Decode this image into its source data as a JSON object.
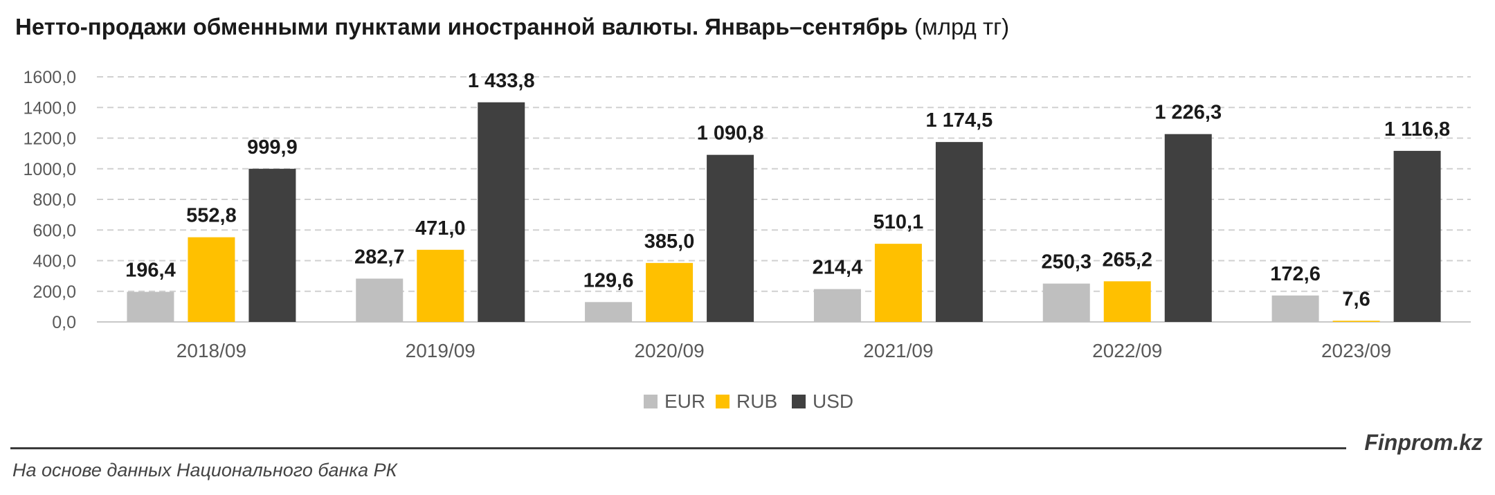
{
  "title": {
    "main": "Нетто-продажи обменными пунктами иностранной валюты. Январь–сентябрь",
    "unit": "(млрд тг)"
  },
  "chart_data": {
    "type": "bar",
    "categories": [
      "2018/09",
      "2019/09",
      "2020/09",
      "2021/09",
      "2022/09",
      "2023/09"
    ],
    "series": [
      {
        "name": "EUR",
        "values": [
          196.4,
          282.7,
          129.6,
          214.4,
          250.3,
          172.6
        ],
        "labels": [
          "196,4",
          "282,7",
          "129,6",
          "214,4",
          "250,3",
          "172,6"
        ],
        "color": "#bfbfbf"
      },
      {
        "name": "RUB",
        "values": [
          552.8,
          471.0,
          385.0,
          510.1,
          265.2,
          7.6
        ],
        "labels": [
          "552,8",
          "471,0",
          "385,0",
          "510,1",
          "265,2",
          "7,6"
        ],
        "color": "#ffc000"
      },
      {
        "name": "USD",
        "values": [
          999.9,
          1433.8,
          1090.8,
          1174.5,
          1226.3,
          1116.8
        ],
        "labels": [
          "999,9",
          "1 433,8",
          "1 090,8",
          "1 174,5",
          "1 226,3",
          "1 116,8"
        ],
        "color": "#404040"
      }
    ],
    "ylim": [
      0,
      1600
    ],
    "yticks": [
      "0,0",
      "200,0",
      "400,0",
      "600,0",
      "800,0",
      "1000,0",
      "1200,0",
      "1400,0",
      "1600,0"
    ],
    "grid": true,
    "legend": "bottom"
  },
  "footer": {
    "brand": "Finprom.kz",
    "source": "На основе данных Национального банка РК"
  }
}
